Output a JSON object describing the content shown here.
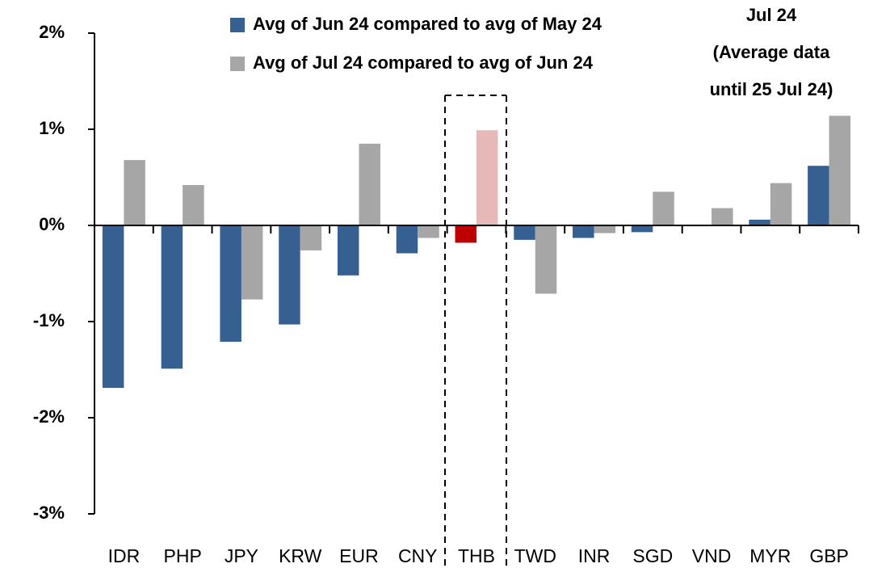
{
  "chart_data": {
    "type": "bar",
    "categories": [
      "IDR",
      "PHP",
      "JPY",
      "KRW",
      "EUR",
      "CNY",
      "THB",
      "TWD",
      "INR",
      "SGD",
      "VND",
      "MYR",
      "GBP"
    ],
    "series": [
      {
        "name": "Avg of Jun 24 compared to avg of May 24",
        "color": "#376092",
        "colors": [
          "#376092",
          "#376092",
          "#376092",
          "#376092",
          "#376092",
          "#376092",
          "#c00000",
          "#376092",
          "#376092",
          "#376092",
          "#376092",
          "#376092",
          "#376092"
        ],
        "values": [
          -1.69,
          -1.49,
          -1.21,
          -1.03,
          -0.52,
          -0.29,
          -0.18,
          -0.15,
          -0.13,
          -0.07,
          0,
          0.06,
          0.62
        ]
      },
      {
        "name": "Avg of Jul 24 compared to avg of Jun 24",
        "color": "#a6a6a6",
        "colors": [
          "#a6a6a6",
          "#a6a6a6",
          "#a6a6a6",
          "#a6a6a6",
          "#a6a6a6",
          "#a6a6a6",
          "#e6b9b8",
          "#a6a6a6",
          "#a6a6a6",
          "#a6a6a6",
          "#a6a6a6",
          "#a6a6a6",
          "#a6a6a6"
        ],
        "values": [
          0.68,
          0.42,
          -0.77,
          -0.26,
          0.85,
          -0.13,
          0.99,
          -0.71,
          -0.08,
          0.35,
          0.18,
          0.44,
          1.14
        ]
      }
    ],
    "annotation": [
      "Jul 24",
      "(Average data",
      "until 25 Jul 24)"
    ],
    "ylim": [
      -3,
      2
    ],
    "yticks": [
      {
        "value": -3,
        "label": "-3%"
      },
      {
        "value": -2,
        "label": "-2%"
      },
      {
        "value": -1,
        "label": "-1%"
      },
      {
        "value": 0,
        "label": "0%"
      },
      {
        "value": 1,
        "label": "1%"
      },
      {
        "value": 2,
        "label": "2%"
      }
    ],
    "grid": false
  }
}
